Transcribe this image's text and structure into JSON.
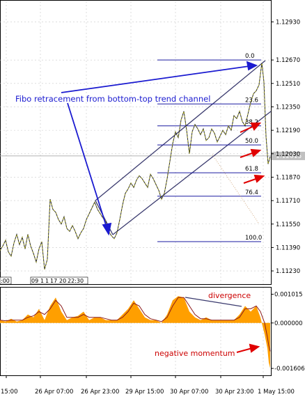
{
  "chart_data": [
    {
      "type": "candlestick",
      "panel": "price",
      "y_tick_labels": [
        "1.12930",
        "1.12670",
        "1.12510",
        "1.12350",
        "1.12190",
        "1.12030",
        "1.11870",
        "1.11710",
        "1.11550",
        "1.11390",
        "1.11230"
      ],
      "y_tick_values": [
        1.1293,
        1.1267,
        1.1251,
        1.1235,
        1.1219,
        1.1203,
        1.1187,
        1.1171,
        1.1155,
        1.1139,
        1.1123
      ],
      "current_price_label": "1.12015",
      "current_price_value": 1.12015,
      "ylim": [
        1.1114,
        1.1307
      ],
      "fibo_levels": [
        {
          "label": "0.0",
          "value": 1.1267
        },
        {
          "label": "23.6",
          "value": 1.1237
        },
        {
          "label": "38.2",
          "value": 1.1222
        },
        {
          "label": "50.0",
          "value": 1.1209
        },
        {
          "label": "61.8",
          "value": 1.119
        },
        {
          "label": "76.4",
          "value": 1.1174
        },
        {
          "label": "100.0",
          "value": 1.1143
        }
      ],
      "annotation": "Fibo retracement from bottom-top trend channel",
      "small_labels": [
        "09",
        "1",
        "1",
        "17",
        "20",
        "22:30",
        ":00"
      ],
      "close_path": [
        [
          0,
          1.1137
        ],
        [
          4,
          1.114
        ],
        [
          8,
          1.1144
        ],
        [
          12,
          1.1136
        ],
        [
          16,
          1.1133
        ],
        [
          20,
          1.1142
        ],
        [
          24,
          1.1148
        ],
        [
          28,
          1.1141
        ],
        [
          32,
          1.1146
        ],
        [
          36,
          1.1138
        ],
        [
          40,
          1.1148
        ],
        [
          44,
          1.114
        ],
        [
          48,
          1.1135
        ],
        [
          52,
          1.1129
        ],
        [
          56,
          1.1138
        ],
        [
          60,
          1.1143
        ],
        [
          64,
          1.1124
        ],
        [
          68,
          1.1131
        ],
        [
          72,
          1.1172
        ],
        [
          76,
          1.1165
        ],
        [
          80,
          1.1163
        ],
        [
          84,
          1.1158
        ],
        [
          88,
          1.1155
        ],
        [
          92,
          1.116
        ],
        [
          96,
          1.1152
        ],
        [
          100,
          1.115
        ],
        [
          104,
          1.1154
        ],
        [
          108,
          1.115
        ],
        [
          112,
          1.1145
        ],
        [
          116,
          1.1149
        ],
        [
          120,
          1.1152
        ],
        [
          124,
          1.1158
        ],
        [
          128,
          1.1162
        ],
        [
          132,
          1.1166
        ],
        [
          136,
          1.117
        ],
        [
          140,
          1.1165
        ],
        [
          144,
          1.1162
        ],
        [
          148,
          1.1159
        ],
        [
          152,
          1.1157
        ],
        [
          156,
          1.115
        ],
        [
          160,
          1.1147
        ],
        [
          164,
          1.1145
        ],
        [
          168,
          1.1149
        ],
        [
          172,
          1.1158
        ],
        [
          176,
          1.1168
        ],
        [
          180,
          1.1176
        ],
        [
          184,
          1.1179
        ],
        [
          188,
          1.1183
        ],
        [
          192,
          1.118
        ],
        [
          196,
          1.1185
        ],
        [
          200,
          1.1188
        ],
        [
          204,
          1.1186
        ],
        [
          208,
          1.1183
        ],
        [
          212,
          1.118
        ],
        [
          216,
          1.1189
        ],
        [
          220,
          1.1186
        ],
        [
          224,
          1.1182
        ],
        [
          228,
          1.1178
        ],
        [
          232,
          1.1172
        ],
        [
          236,
          1.1176
        ],
        [
          240,
          1.1186
        ],
        [
          244,
          1.1198
        ],
        [
          248,
          1.121
        ],
        [
          252,
          1.1218
        ],
        [
          256,
          1.1214
        ],
        [
          260,
          1.1226
        ],
        [
          264,
          1.1232
        ],
        [
          268,
          1.1219
        ],
        [
          272,
          1.1203
        ],
        [
          276,
          1.1218
        ],
        [
          280,
          1.1223
        ],
        [
          284,
          1.122
        ],
        [
          288,
          1.1216
        ],
        [
          292,
          1.122
        ],
        [
          296,
          1.1212
        ],
        [
          300,
          1.1214
        ],
        [
          304,
          1.122
        ],
        [
          308,
          1.1217
        ],
        [
          312,
          1.1211
        ],
        [
          316,
          1.1215
        ],
        [
          320,
          1.1219
        ],
        [
          324,
          1.1216
        ],
        [
          328,
          1.1222
        ],
        [
          332,
          1.1219
        ],
        [
          336,
          1.1229
        ],
        [
          340,
          1.1227
        ],
        [
          344,
          1.1232
        ],
        [
          348,
          1.1225
        ],
        [
          352,
          1.1222
        ],
        [
          356,
          1.123
        ],
        [
          360,
          1.1238
        ],
        [
          364,
          1.1244
        ],
        [
          368,
          1.1246
        ],
        [
          372,
          1.125
        ],
        [
          376,
          1.1265
        ],
        [
          379,
          1.1252
        ],
        [
          382,
          1.1215
        ],
        [
          385,
          1.1196
        ],
        [
          388,
          1.1201
        ]
      ]
    },
    {
      "type": "area",
      "panel": "momentum",
      "y_tick_labels": [
        "0.001015",
        "0.000000",
        "-0.001606"
      ],
      "y_tick_values": [
        0.001015,
        0.0,
        -0.001606
      ],
      "ylim": [
        -0.00185,
        0.00125
      ],
      "x_tick_labels": [
        "15:00",
        "26 Apr 07:00",
        "26 Apr 23:00",
        "29 Apr 15:00",
        "30 Apr 07:00",
        "30 Apr 23:00",
        "1 May 15:00"
      ],
      "x": [
        0,
        8,
        16,
        24,
        32,
        40,
        48,
        56,
        64,
        72,
        80,
        88,
        96,
        104,
        112,
        120,
        128,
        136,
        144,
        152,
        160,
        168,
        176,
        184,
        192,
        200,
        208,
        216,
        224,
        232,
        240,
        248,
        256,
        264,
        272,
        280,
        288,
        296,
        304,
        312,
        320,
        328,
        336,
        344,
        352,
        360,
        368,
        374,
        380,
        384,
        386,
        388
      ],
      "values": [
        0.0001,
        5e-05,
        0.00015,
        5e-05,
        0.0001,
        0.0003,
        0.0002,
        0.0005,
        0.0001,
        0.0006,
        0.0009,
        0.0004,
        0.0001,
        0.0002,
        0.00025,
        0.0004,
        0.0001,
        0.0002,
        0.0002,
        0.0001,
        0.0001,
        0.0001,
        0.0003,
        0.0005,
        0.0008,
        0.0005,
        0.0002,
        0.0001,
        0.0001,
        0.0,
        0.0003,
        0.0008,
        0.00095,
        0.0009,
        0.0004,
        0.0002,
        0.0001,
        0.0002,
        0.0001,
        0.0001,
        0.0001,
        0.0001,
        0.0001,
        0.0003,
        0.0006,
        0.0004,
        0.0006,
        0.0002,
        -0.0004,
        -0.0009,
        -0.0014,
        -0.0016
      ],
      "signal": [
        0.0001,
        8e-05,
        0.0001,
        0.0001,
        0.0001,
        0.0002,
        0.00025,
        0.0004,
        0.0003,
        0.0005,
        0.0008,
        0.0006,
        0.0002,
        0.0002,
        0.0002,
        0.0003,
        0.0002,
        0.0002,
        0.0002,
        0.00015,
        0.0001,
        0.0001,
        0.0002,
        0.0004,
        0.0007,
        0.0006,
        0.0003,
        0.00015,
        0.0001,
        5e-05,
        0.0002,
        0.0006,
        0.0009,
        0.0009,
        0.0006,
        0.0003,
        0.00015,
        0.00015,
        0.0001,
        0.0001,
        0.0001,
        0.0001,
        0.0001,
        0.0002,
        0.0005,
        0.0005,
        0.0006,
        0.0004,
        0.0,
        -0.0005,
        -0.0008,
        -0.001
      ],
      "annotations": [
        "divergence",
        "negative momentum"
      ]
    }
  ],
  "colors": {
    "trend_line": "#3a3a6e",
    "fibo_line": "#1a1aa0",
    "annotation_text": "#1a1ad0",
    "arrow_red": "#e00000",
    "annotation_red": "#cc0000",
    "histogram": "#ff9f00",
    "signal_line": "#8b1a1a",
    "grid": "#c8c8c8"
  }
}
